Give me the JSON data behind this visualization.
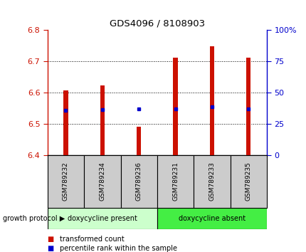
{
  "title": "GDS4096 / 8108903",
  "samples": [
    "GSM789232",
    "GSM789234",
    "GSM789236",
    "GSM789231",
    "GSM789233",
    "GSM789235"
  ],
  "bar_tops": [
    6.606,
    6.622,
    6.49,
    6.712,
    6.748,
    6.712
  ],
  "bar_bottom": 6.4,
  "blue_dot_values": [
    6.544,
    6.545,
    6.548,
    6.548,
    6.555,
    6.548
  ],
  "ylim": [
    6.4,
    6.8
  ],
  "yticks_left": [
    6.4,
    6.5,
    6.6,
    6.7,
    6.8
  ],
  "yticks_right": [
    0,
    25,
    50,
    75,
    100
  ],
  "bar_color": "#cc1100",
  "dot_color": "#0000cc",
  "group1_label": "doxycycline present",
  "group2_label": "doxycycline absent",
  "group1_indices": [
    0,
    1,
    2
  ],
  "group2_indices": [
    3,
    4,
    5
  ],
  "group1_color": "#ccffcc",
  "group2_color": "#44ee44",
  "protocol_label": "growth protocol",
  "legend_bar_label": "transformed count",
  "legend_dot_label": "percentile rank within the sample",
  "bar_width": 0.12,
  "title_color": "#000000",
  "left_axis_color": "#cc1100",
  "right_axis_color": "#0000cc"
}
